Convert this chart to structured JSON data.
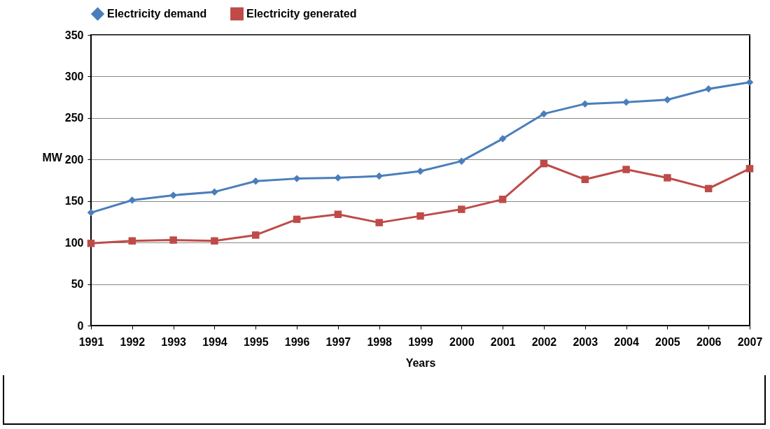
{
  "chart_data": {
    "type": "line",
    "xlabel": "Years",
    "ylabel": "MW",
    "categories": [
      "1991",
      "1992",
      "1993",
      "1994",
      "1995",
      "1996",
      "1997",
      "1998",
      "1999",
      "2000",
      "2001",
      "2002",
      "2003",
      "2004",
      "2005",
      "2006",
      "2007"
    ],
    "series": [
      {
        "name": "Electricity demand",
        "color": "#4a7ebb",
        "marker": "diamond",
        "values": [
          136,
          151,
          157,
          161,
          174,
          177,
          178,
          180,
          186,
          198,
          225,
          255,
          267,
          269,
          272,
          285,
          293
        ]
      },
      {
        "name": "Electricity generated",
        "color": "#be4b48",
        "marker": "square",
        "values": [
          99,
          102,
          103,
          102,
          109,
          128,
          134,
          124,
          132,
          140,
          152,
          195,
          176,
          188,
          178,
          165,
          189
        ]
      }
    ],
    "ylim": [
      0,
      350
    ],
    "yticks": [
      0,
      50,
      100,
      150,
      200,
      250,
      300,
      350
    ],
    "grid": "y",
    "legend": "top"
  }
}
